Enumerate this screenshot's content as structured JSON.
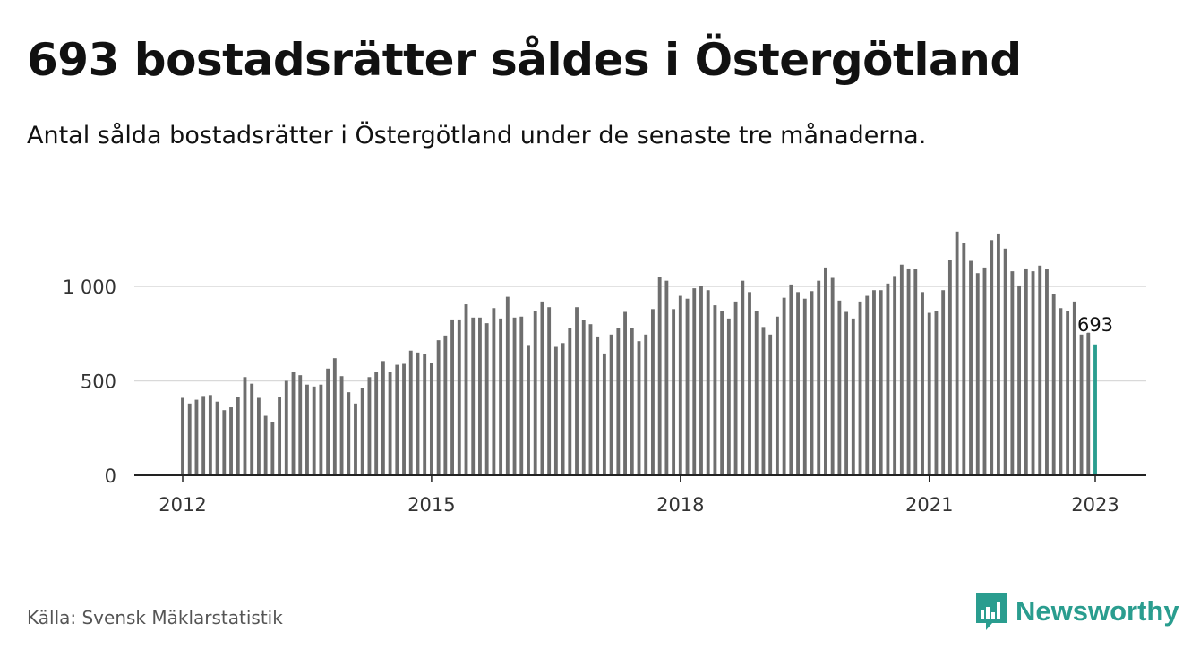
{
  "header": {
    "title": "693 bostadsrätter såldes i Östergötland",
    "subtitle": "Antal sålda bostadsrätter i Östergötland under de senaste tre månaderna."
  },
  "footer": {
    "source": "Källa: Svensk Mäklarstatistik",
    "brand": "Newsworthy",
    "brand_icon": "bar-chart-speech-bubble-icon"
  },
  "colors": {
    "bar": "#6e6e6e",
    "highlight": "#2a9d8f",
    "grid": "#d9d9d9",
    "axis": "#222222",
    "brand": "#2a9d8f"
  },
  "chart_data": {
    "type": "bar",
    "x_start": "2012-01",
    "x_end": "2023-01",
    "ylim": [
      0,
      1300
    ],
    "y_ticks": [
      0,
      500,
      1000
    ],
    "y_tick_labels": [
      "0",
      "500",
      "1 000"
    ],
    "x_ticks": [
      "2012",
      "2015",
      "2018",
      "2021",
      "2023"
    ],
    "grid": true,
    "highlight_last": true,
    "last_label": "693",
    "values": [
      410,
      380,
      400,
      420,
      425,
      390,
      345,
      360,
      415,
      520,
      485,
      410,
      315,
      280,
      415,
      500,
      545,
      530,
      480,
      470,
      480,
      565,
      620,
      525,
      440,
      380,
      460,
      520,
      545,
      605,
      545,
      585,
      590,
      660,
      650,
      640,
      595,
      715,
      740,
      825,
      825,
      905,
      835,
      835,
      805,
      885,
      830,
      945,
      835,
      840,
      690,
      870,
      920,
      890,
      680,
      700,
      780,
      890,
      820,
      800,
      735,
      645,
      745,
      780,
      865,
      780,
      710,
      745,
      880,
      1050,
      1030,
      880,
      950,
      935,
      990,
      1000,
      980,
      900,
      870,
      830,
      920,
      1030,
      970,
      870,
      785,
      745,
      840,
      940,
      1010,
      970,
      935,
      975,
      1030,
      1100,
      1045,
      925,
      865,
      830,
      920,
      950,
      980,
      980,
      1015,
      1055,
      1115,
      1095,
      1090,
      970,
      860,
      870,
      980,
      1140,
      1290,
      1230,
      1135,
      1070,
      1100,
      1245,
      1280,
      1200,
      1080,
      1005,
      1095,
      1080,
      1110,
      1090,
      960,
      885,
      870,
      920,
      745,
      755,
      693
    ]
  }
}
